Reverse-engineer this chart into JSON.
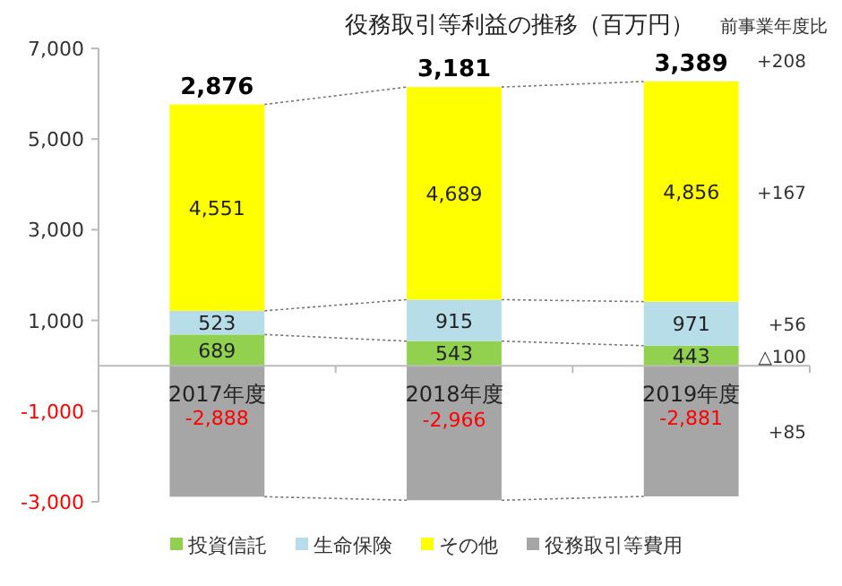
{
  "chart_data": {
    "type": "bar",
    "title": "役務取引等利益の推移（百万円）",
    "stacked": true,
    "categories": [
      "2017年度",
      "2018年度",
      "2019年度"
    ],
    "series": [
      {
        "name": "投資信託",
        "color": "#92d050",
        "values": [
          689,
          543,
          443
        ],
        "value_labels": [
          "689",
          "543",
          "443"
        ]
      },
      {
        "name": "生命保険",
        "color": "#b7dee8",
        "values": [
          523,
          915,
          971
        ],
        "value_labels": [
          "523",
          "915",
          "971"
        ]
      },
      {
        "name": "その他",
        "color": "#ffff00",
        "values": [
          4551,
          4689,
          4856
        ],
        "value_labels": [
          "4,551",
          "4,689",
          "4,856"
        ]
      },
      {
        "name": "役務取引等費用",
        "color": "#a6a6a6",
        "values": [
          -2888,
          -2966,
          -2881
        ],
        "value_labels": [
          "-2,888",
          "-2,966",
          "-2,881"
        ]
      }
    ],
    "totals": [
      "2,876",
      "3,181",
      "3,389"
    ],
    "ylim": [
      -3000,
      7000
    ],
    "yticks": [
      {
        "value": 7000,
        "label": "7,000"
      },
      {
        "value": 5000,
        "label": "5,000"
      },
      {
        "value": 3000,
        "label": "3,000"
      },
      {
        "value": 1000,
        "label": "1,000"
      },
      {
        "value": -1000,
        "label": "-1,000"
      },
      {
        "value": -3000,
        "label": "-3,000"
      }
    ],
    "grid": false,
    "legend": "bottom",
    "annotations": [
      "前事業年度比",
      "+208",
      "+167",
      "+56",
      "△100",
      "+85"
    ]
  }
}
